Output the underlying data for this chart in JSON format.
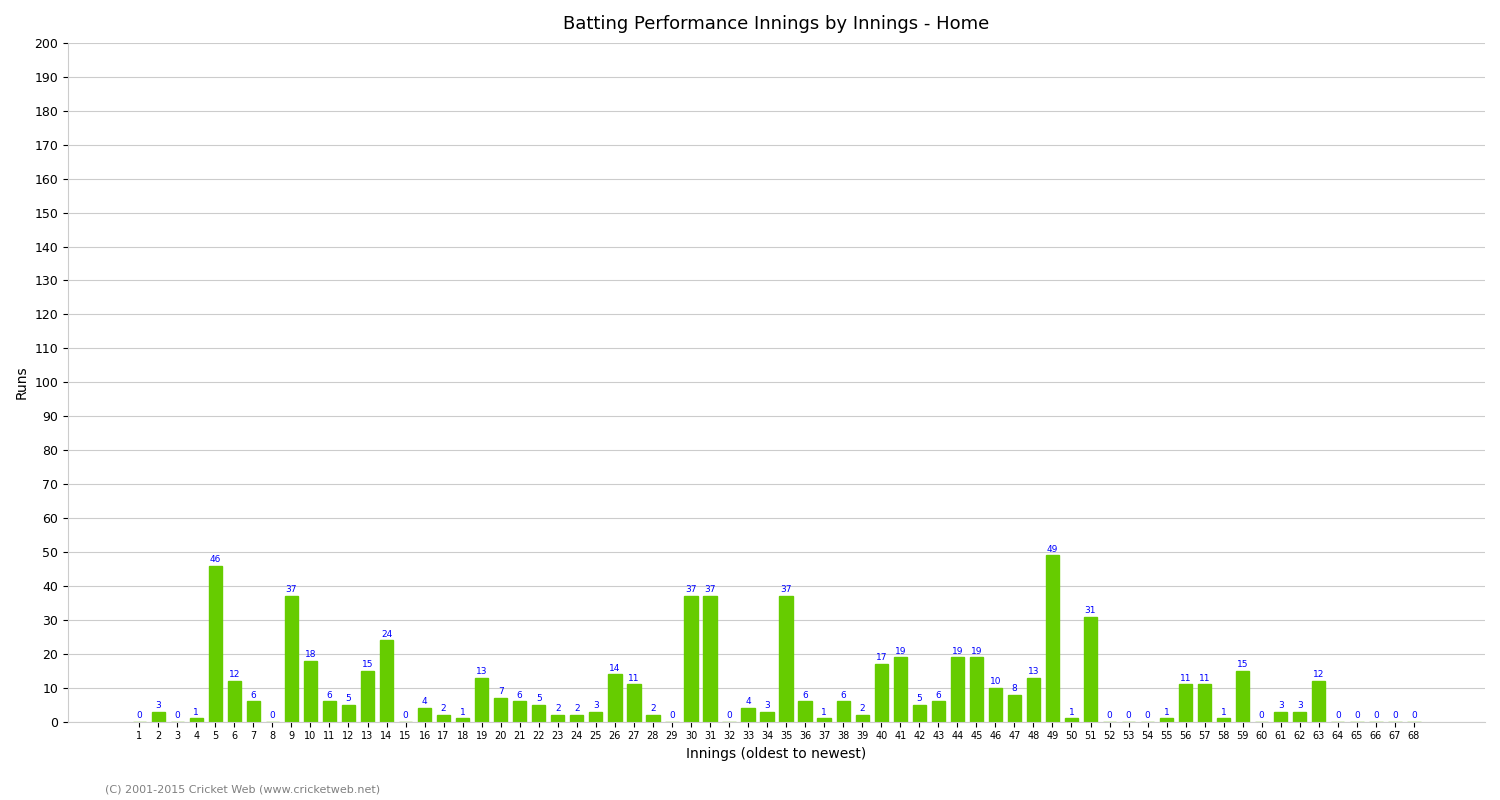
{
  "title": "Batting Performance Innings by Innings - Home",
  "xlabel": "Innings (oldest to newest)",
  "ylabel": "Runs",
  "bar_color": "#66cc00",
  "label_color": "blue",
  "background_color": "#ffffff",
  "grid_color": "#cccccc",
  "ylim": [
    0,
    200
  ],
  "yticks": [
    0,
    10,
    20,
    30,
    40,
    50,
    60,
    70,
    80,
    90,
    100,
    110,
    120,
    130,
    140,
    150,
    160,
    170,
    180,
    190,
    200
  ],
  "innings": [
    1,
    2,
    3,
    4,
    5,
    6,
    7,
    8,
    9,
    10,
    11,
    12,
    13,
    14,
    15,
    16,
    17,
    18,
    19,
    20,
    21,
    22,
    23,
    24,
    25,
    26,
    27,
    28,
    29,
    30,
    31,
    32,
    33,
    34,
    35,
    36,
    37,
    38,
    39,
    40,
    41,
    42,
    43,
    44,
    45,
    46,
    47,
    48,
    49,
    50,
    51,
    52,
    53,
    54,
    55,
    56,
    57,
    58,
    59,
    60,
    61,
    62,
    63,
    64,
    65,
    66,
    67,
    68
  ],
  "values": [
    0,
    3,
    0,
    1,
    46,
    12,
    6,
    0,
    37,
    18,
    6,
    5,
    15,
    24,
    0,
    4,
    2,
    1,
    13,
    7,
    6,
    5,
    2,
    2,
    3,
    14,
    11,
    2,
    0,
    37,
    37,
    0,
    4,
    3,
    37,
    6,
    1,
    6,
    2,
    17,
    19,
    5,
    6,
    19,
    19,
    10,
    8,
    13,
    49,
    1,
    31,
    0,
    0,
    0,
    1,
    11,
    11,
    1,
    15,
    0,
    3,
    3,
    12,
    0,
    0,
    0,
    0,
    0
  ],
  "copyright": "(C) 2001-2015 Cricket Web (www.cricketweb.net)"
}
